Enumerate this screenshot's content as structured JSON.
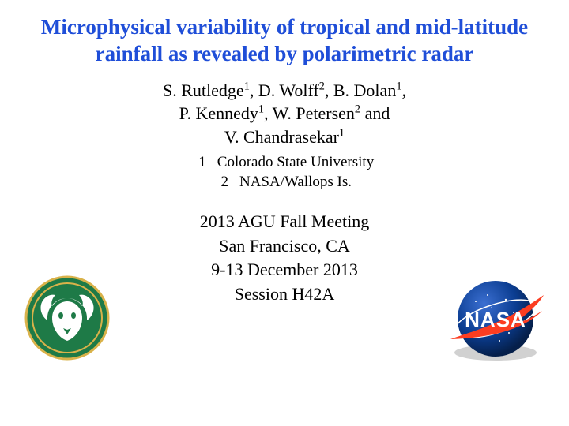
{
  "title": {
    "text": "Microphysical variability of tropical and mid-latitude rainfall as revealed by polarimetric radar",
    "color": "#1f4ed8",
    "fontsize": 27
  },
  "authors": {
    "line1_html": "S. Rutledge<sup>1</sup>, D. Wolff<sup>2</sup>, B. Dolan<sup>1</sup>,",
    "line2_html": "P. Kennedy<sup>1</sup>, W. Petersen<sup>2</sup> and",
    "line3_html": "V. Chandrasekar<sup>1</sup>",
    "fontsize": 22,
    "color": "#000000"
  },
  "affiliations": {
    "rows": [
      {
        "num": "1",
        "name": "Colorado State University"
      },
      {
        "num": "2",
        "name": "NASA/Wallops Is."
      }
    ],
    "fontsize": 19,
    "color": "#000000"
  },
  "meeting": {
    "lines": [
      "2013 AGU Fall Meeting",
      "San Francisco, CA",
      "9-13 December 2013",
      "Session H42A"
    ],
    "fontsize": 22,
    "color": "#000000"
  },
  "logos": {
    "left": {
      "name": "csu-ram-logo",
      "circle_color": "#1e7a47",
      "ring_color": "#d9b24a",
      "ram_color": "#ffffff"
    },
    "right": {
      "name": "nasa-meatball-logo",
      "sphere_color": "#0b3d91",
      "swoosh_color": "#fc3d21",
      "text": "NASA",
      "text_color": "#ffffff"
    }
  },
  "background_color": "#ffffff"
}
